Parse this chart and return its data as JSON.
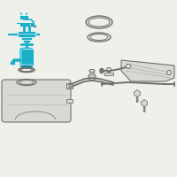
{
  "bg_color": "#f0f0eb",
  "teal": "#1ab0c8",
  "teal_dark": "#0090a8",
  "teal_light": "#50d0e0",
  "gray_line": "#707070",
  "gray_fill": "#d8d8d4",
  "gray_dark": "#505050",
  "white": "#ffffff",
  "figsize": [
    2.0,
    2.0
  ],
  "dpi": 100
}
